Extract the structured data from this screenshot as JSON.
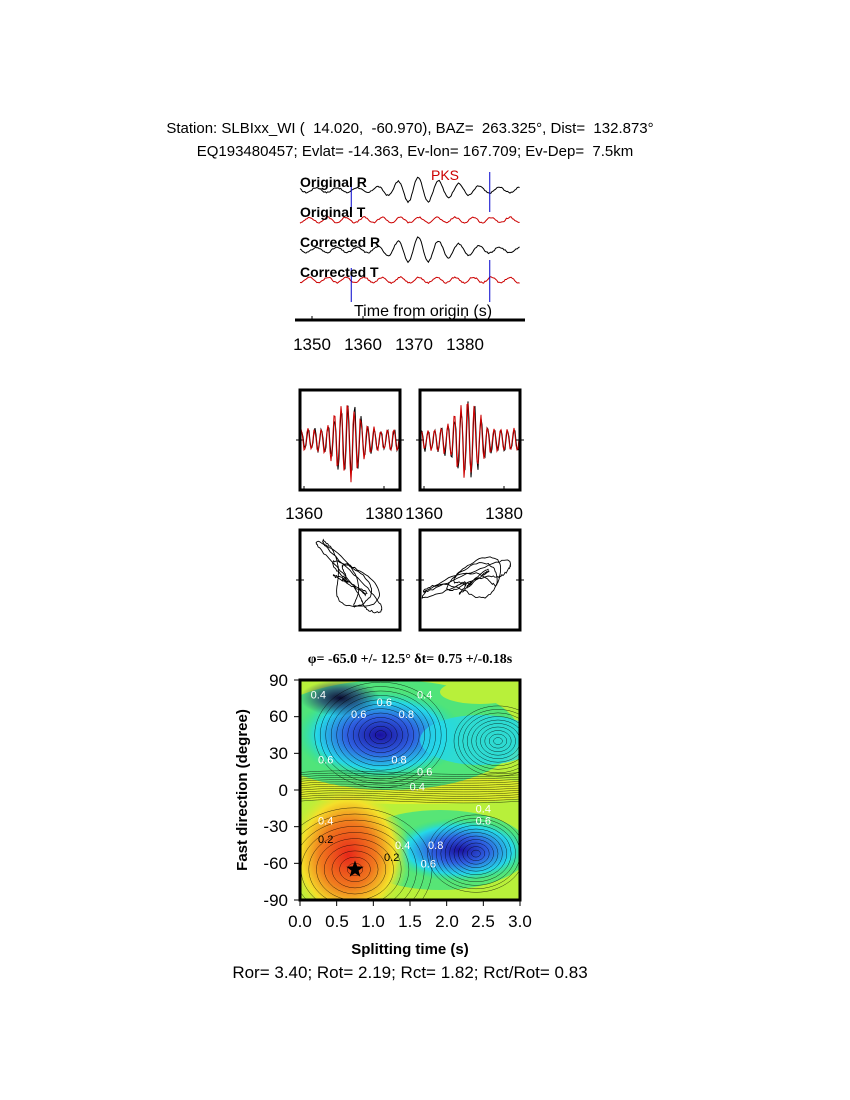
{
  "header": {
    "line1": "Station: SLBIxx_WI (  14.020,  -60.970), BAZ=  263.325°, Dist=  132.873°",
    "line2": "EQ193480457; Evlat= -14.363, Ev-lon= 167.709; Ev-Dep=  7.5km"
  },
  "traces": {
    "labels": [
      "Original R",
      "Original T",
      "Corrected R",
      "Corrected T"
    ],
    "phase": "PKS",
    "axis_title": "Time from origin (s)",
    "ticks": [
      "1350",
      "1360",
      "1370",
      "1380"
    ],
    "tick_values": [
      1350,
      1360,
      1370,
      1380
    ],
    "xlim": [
      1349,
      1389
    ],
    "window": [
      1358.5,
      1383.5
    ],
    "colors": {
      "R": "#000000",
      "T": "#cc0000",
      "window": "#0000cc",
      "phase": "#cc0000"
    }
  },
  "waveform_panels": {
    "left_ticks": [
      "1360",
      "1380"
    ],
    "right_ticks": [
      "1360",
      "1380"
    ],
    "tick_values": [
      1360,
      1380
    ],
    "xlim": [
      1358.5,
      1383.5
    ]
  },
  "grid_search": {
    "title": "φ= -65.0 +/- 12.5° δt= 0.75 +/-0.18s",
    "xlabel": "Splitting time (s)",
    "ylabel": "Fast direction (degree)",
    "xticks": [
      "0.0",
      "0.5",
      "1.0",
      "1.5",
      "2.0",
      "2.5",
      "3.0"
    ],
    "yticks": [
      "90",
      "60",
      "30",
      "0",
      "-30",
      "-60",
      "-90"
    ],
    "contour_labels": [
      "0.4",
      "0.6",
      "0.8",
      "0.6",
      "0.4",
      "0.6",
      "0.8",
      "0.6",
      "0.4",
      "0.4",
      "0.6",
      "0.4",
      "0.2",
      "0.4",
      "0.2",
      "0.8",
      "0.6"
    ],
    "colormap": [
      "#1a10a0",
      "#2e5fe0",
      "#25d8e8",
      "#2de090",
      "#b8f03a",
      "#f4f22a",
      "#f5a01e",
      "#e83018"
    ]
  },
  "footer": "Ror= 3.40; Rot= 2.19; Rct= 1.82; Rct/Rot= 0.83",
  "chart_data": [
    {
      "type": "line",
      "title": "",
      "xlabel": "Time from origin (s)",
      "x_ticks": [
        1350,
        1360,
        1370,
        1380
      ],
      "series": [
        {
          "name": "Original R"
        },
        {
          "name": "Original T"
        },
        {
          "name": "Corrected R"
        },
        {
          "name": "Corrected T"
        }
      ],
      "annotations": [
        "PKS"
      ]
    },
    {
      "type": "line",
      "title": "",
      "x_ticks": [
        1360,
        1380
      ],
      "series": [
        {
          "name": "",
          "color": "#000000"
        },
        {
          "name": "",
          "color": "#cc0000"
        }
      ]
    },
    {
      "type": "heatmap",
      "title": "φ= -65.0 +/- 12.5° δt= 0.75 +/-0.18s",
      "xlabel": "Splitting time (s)",
      "ylabel": "Fast direction (degree)",
      "xlim": [
        0,
        3.0
      ],
      "ylim": [
        -90,
        90
      ],
      "best_fit": {
        "x": 0.75,
        "y": -65.0
      },
      "contour_levels": [
        0.2,
        0.4,
        0.6,
        0.8
      ]
    }
  ]
}
